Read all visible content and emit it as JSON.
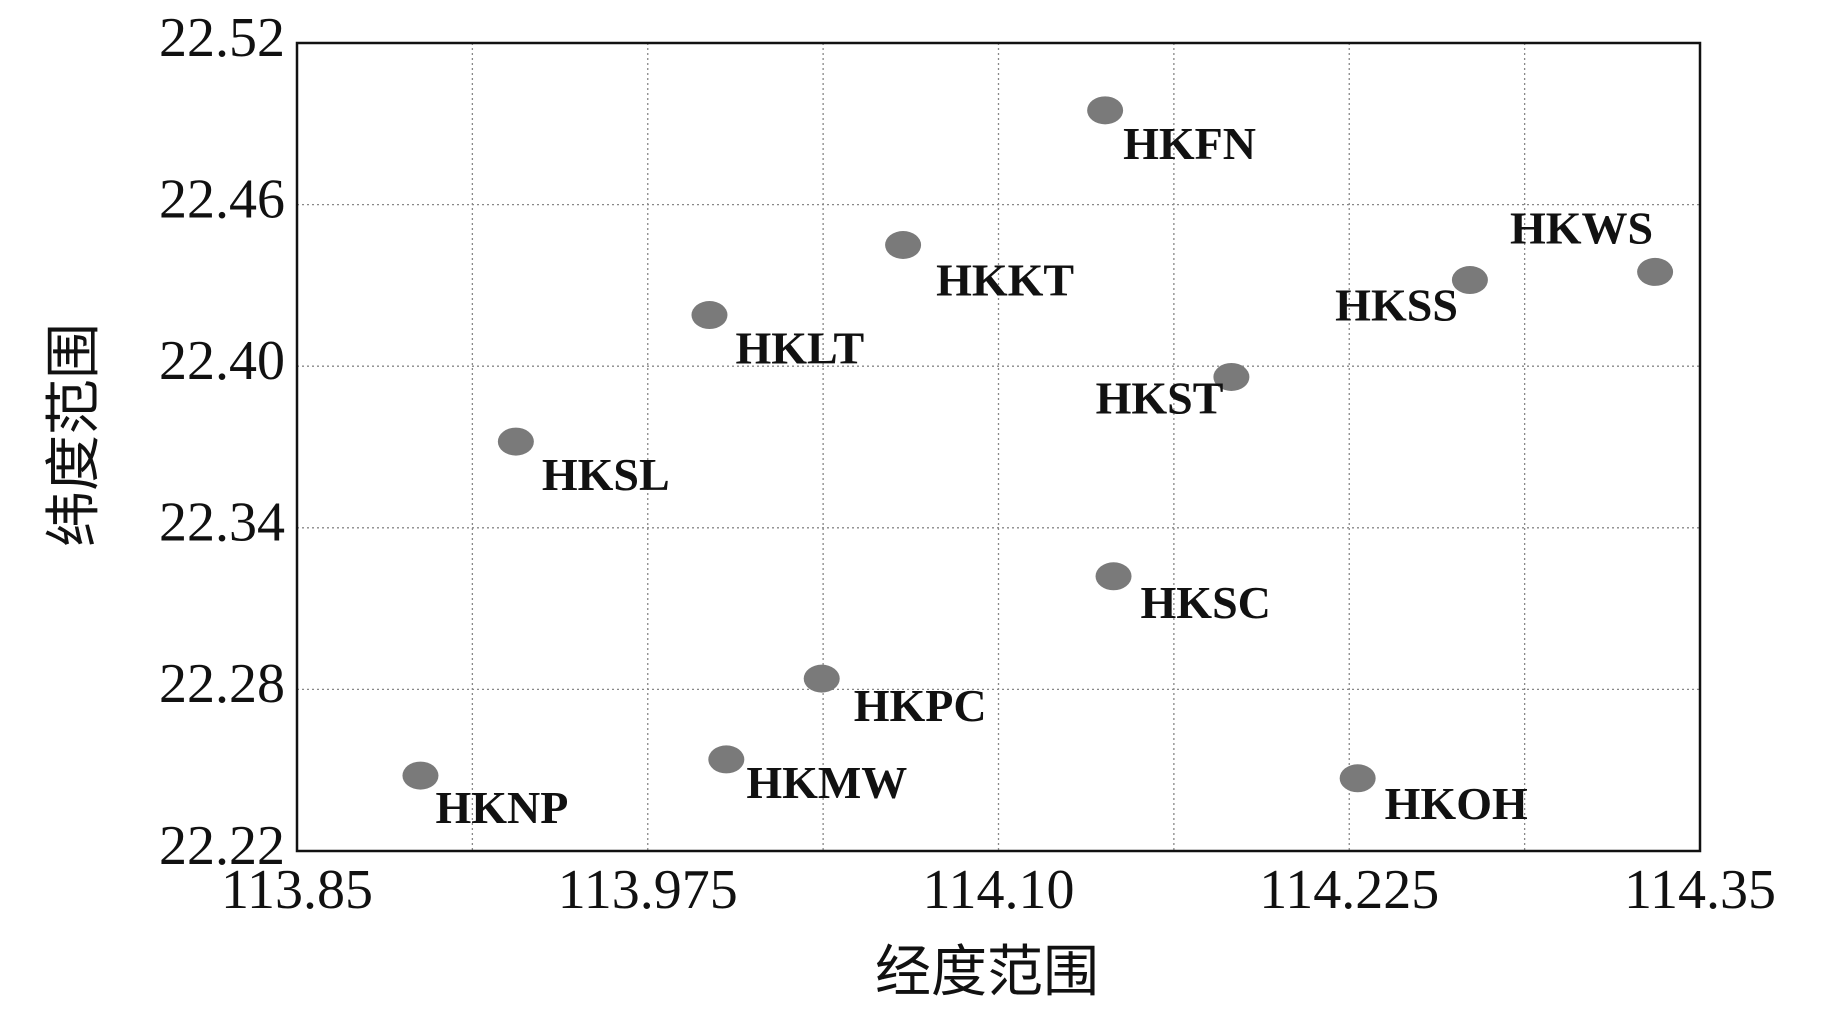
{
  "chart_data": {
    "type": "scatter",
    "x_label": "经度范围",
    "y_label": "纬度范围",
    "xlim": [
      113.85,
      114.35
    ],
    "xticks": [
      113.85,
      113.975,
      {
        "value": 114.1,
        "label": "114.10"
      },
      114.225,
      114.35
    ],
    "xminorticks": [
      113.9125,
      114.0375,
      114.1625,
      114.2875
    ],
    "ylim": [
      22.22,
      22.52
    ],
    "yticks": [
      22.22,
      22.28,
      22.34,
      {
        "value": 22.4,
        "label": "22.40"
      },
      22.46,
      22.52
    ],
    "grid": true,
    "color": "#7a7a7a",
    "series": [
      {
        "labels": [
          "HKFN",
          "HKKT",
          "HKLT",
          "HKSL",
          "HKST",
          "HKSS",
          "HKWS",
          "HKSC",
          "HKPC",
          "HKMW",
          "HKNP",
          "HKOH"
        ],
        "x": [
          114.138,
          114.066,
          113.997,
          113.928,
          114.183,
          114.268,
          114.334,
          114.141,
          114.037,
          114.003,
          113.894,
          114.228
        ],
        "values": [
          22.495,
          22.445,
          22.419,
          22.372,
          22.396,
          22.432,
          22.435,
          22.322,
          22.284,
          22.254,
          22.248,
          22.247
        ]
      }
    ]
  }
}
